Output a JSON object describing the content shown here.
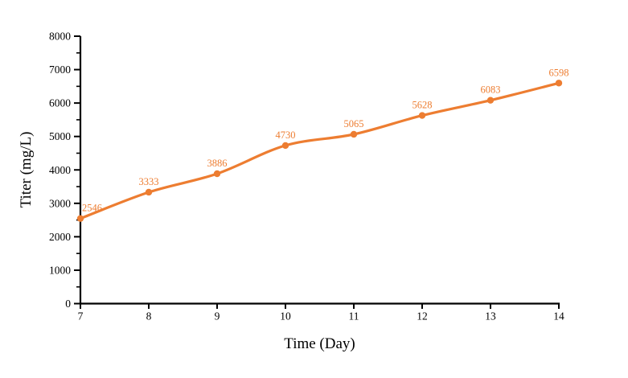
{
  "chart_data": {
    "type": "line",
    "title": "",
    "xlabel": "Time (Day)",
    "ylabel": "Titer (mg/L)",
    "x": [
      7,
      8,
      9,
      10,
      11,
      12,
      13,
      14
    ],
    "series": [
      {
        "name": "Titer",
        "values": [
          2546,
          3333,
          3886,
          4730,
          5065,
          5628,
          6083,
          6598
        ],
        "color": "#ED7D31",
        "marker": "circle",
        "data_labels": [
          "2546",
          "3333",
          "3886",
          "4730",
          "5065",
          "5628",
          "6083",
          "6598"
        ]
      }
    ],
    "xlim": [
      7,
      14
    ],
    "ylim": [
      0,
      8000
    ],
    "x_ticks": [
      7,
      8,
      9,
      10,
      11,
      12,
      13,
      14
    ],
    "x_tick_labels": [
      "7",
      "8",
      "9",
      "10",
      "11",
      "12",
      "13",
      "14"
    ],
    "y_ticks": [
      0,
      1000,
      2000,
      3000,
      4000,
      5000,
      6000,
      7000,
      8000
    ],
    "y_tick_labels": [
      "0",
      "1000",
      "2000",
      "3000",
      "4000",
      "5000",
      "6000",
      "7000",
      "8000"
    ],
    "y_minor_ticks": [
      500,
      1500,
      2500,
      3500,
      4500,
      5500,
      6500,
      7500
    ],
    "grid": false,
    "legend_position": "none",
    "line_smooth": true,
    "axis_color": "#000000",
    "tick_text_color": "#000000",
    "label_color": "#ED7D31",
    "background": "#FFFFFF"
  }
}
